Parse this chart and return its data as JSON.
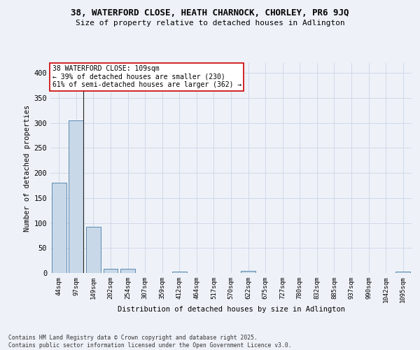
{
  "title_line1": "38, WATERFORD CLOSE, HEATH CHARNOCK, CHORLEY, PR6 9JQ",
  "title_line2": "Size of property relative to detached houses in Adlington",
  "xlabel": "Distribution of detached houses by size in Adlington",
  "ylabel": "Number of detached properties",
  "categories": [
    "44sqm",
    "97sqm",
    "149sqm",
    "202sqm",
    "254sqm",
    "307sqm",
    "359sqm",
    "412sqm",
    "464sqm",
    "517sqm",
    "570sqm",
    "622sqm",
    "675sqm",
    "727sqm",
    "780sqm",
    "832sqm",
    "885sqm",
    "937sqm",
    "990sqm",
    "1042sqm",
    "1095sqm"
  ],
  "values": [
    180,
    305,
    93,
    8,
    9,
    0,
    0,
    3,
    0,
    0,
    0,
    4,
    0,
    0,
    0,
    0,
    0,
    0,
    0,
    0,
    3
  ],
  "bar_color": "#c8d8e8",
  "bar_edge_color": "#5a8ab0",
  "annotation_text": "38 WATERFORD CLOSE: 109sqm\n← 39% of detached houses are smaller (230)\n61% of semi-detached houses are larger (362) →",
  "annotation_box_color": "#ffffff",
  "annotation_box_edge_color": "#cc0000",
  "grid_color": "#d0d8e8",
  "background_color": "#eef2f8",
  "footer_text": "Contains HM Land Registry data © Crown copyright and database right 2025.\nContains public sector information licensed under the Open Government Licence v3.0.",
  "ylim_max": 420,
  "yticks": [
    0,
    50,
    100,
    150,
    200,
    250,
    300,
    350,
    400
  ],
  "vline_x": 1.43
}
